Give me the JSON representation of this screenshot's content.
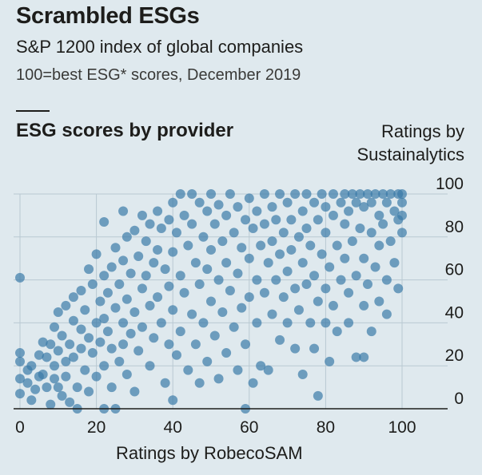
{
  "header": {
    "title": "Scrambled ESGs",
    "subtitle": "S&P 1200 index of global companies",
    "note": "100=best ESG* scores, December 2019"
  },
  "chart_data": {
    "type": "scatter",
    "title": "ESG scores by provider",
    "xlabel": "Ratings by RobecoSAM",
    "ylabel_line1": "Ratings by",
    "ylabel_line2": "Sustainalytics",
    "xlim": [
      0,
      100
    ],
    "ylim": [
      0,
      100
    ],
    "xticks": [
      "0",
      "20",
      "40",
      "60",
      "80",
      "100"
    ],
    "yticks": [
      "0",
      "20",
      "40",
      "60",
      "80",
      "100"
    ],
    "grid": true,
    "point_color": "#3a7aa8",
    "points": [
      [
        0,
        61
      ],
      [
        0,
        26
      ],
      [
        0,
        22
      ],
      [
        0,
        14
      ],
      [
        0,
        7
      ],
      [
        2,
        18
      ],
      [
        2,
        12
      ],
      [
        3,
        4
      ],
      [
        3,
        20
      ],
      [
        4,
        9
      ],
      [
        5,
        25
      ],
      [
        5,
        15
      ],
      [
        6,
        31
      ],
      [
        6,
        16
      ],
      [
        7,
        10
      ],
      [
        7,
        24
      ],
      [
        8,
        30
      ],
      [
        8,
        2
      ],
      [
        9,
        20
      ],
      [
        9,
        38
      ],
      [
        9,
        14
      ],
      [
        10,
        45
      ],
      [
        10,
        27
      ],
      [
        10,
        10
      ],
      [
        11,
        6
      ],
      [
        11,
        34
      ],
      [
        12,
        48
      ],
      [
        12,
        22
      ],
      [
        12,
        15
      ],
      [
        13,
        30
      ],
      [
        13,
        3
      ],
      [
        14,
        41
      ],
      [
        14,
        24
      ],
      [
        14,
        52
      ],
      [
        15,
        0
      ],
      [
        15,
        10
      ],
      [
        16,
        37
      ],
      [
        16,
        55
      ],
      [
        16,
        28
      ],
      [
        17,
        18
      ],
      [
        17,
        46
      ],
      [
        18,
        65
      ],
      [
        18,
        33
      ],
      [
        18,
        8
      ],
      [
        19,
        26
      ],
      [
        19,
        58
      ],
      [
        20,
        72
      ],
      [
        20,
        40
      ],
      [
        20,
        15
      ],
      [
        21,
        50
      ],
      [
        21,
        31
      ],
      [
        22,
        87
      ],
      [
        22,
        62
      ],
      [
        22,
        42
      ],
      [
        22,
        20
      ],
      [
        22,
        0
      ],
      [
        23,
        54
      ],
      [
        23,
        36
      ],
      [
        24,
        66
      ],
      [
        24,
        28
      ],
      [
        24,
        10
      ],
      [
        25,
        75
      ],
      [
        25,
        47
      ],
      [
        25,
        0
      ],
      [
        26,
        58
      ],
      [
        26,
        22
      ],
      [
        27,
        92
      ],
      [
        27,
        69
      ],
      [
        27,
        40
      ],
      [
        27,
        30
      ],
      [
        28,
        80
      ],
      [
        28,
        51
      ],
      [
        28,
        16
      ],
      [
        29,
        63
      ],
      [
        29,
        35
      ],
      [
        30,
        83
      ],
      [
        30,
        45
      ],
      [
        30,
        8
      ],
      [
        31,
        71
      ],
      [
        31,
        27
      ],
      [
        32,
        90
      ],
      [
        32,
        56
      ],
      [
        32,
        38
      ],
      [
        33,
        78
      ],
      [
        33,
        62
      ],
      [
        34,
        86
      ],
      [
        34,
        48
      ],
      [
        34,
        20
      ],
      [
        35,
        68
      ],
      [
        35,
        33
      ],
      [
        36,
        92
      ],
      [
        36,
        74
      ],
      [
        36,
        52
      ],
      [
        37,
        84
      ],
      [
        37,
        40
      ],
      [
        38,
        65
      ],
      [
        38,
        12
      ],
      [
        39,
        88
      ],
      [
        39,
        57
      ],
      [
        39,
        30
      ],
      [
        40,
        96
      ],
      [
        40,
        73
      ],
      [
        40,
        46
      ],
      [
        40,
        4
      ],
      [
        41,
        82
      ],
      [
        41,
        25
      ],
      [
        42,
        100
      ],
      [
        42,
        62
      ],
      [
        42,
        36
      ],
      [
        43,
        90
      ],
      [
        43,
        54
      ],
      [
        44,
        76
      ],
      [
        44,
        18
      ],
      [
        45,
        100
      ],
      [
        45,
        86
      ],
      [
        45,
        44
      ],
      [
        46,
        68
      ],
      [
        46,
        30
      ],
      [
        47,
        96
      ],
      [
        47,
        58
      ],
      [
        47,
        12
      ],
      [
        48,
        80
      ],
      [
        48,
        40
      ],
      [
        49,
        92
      ],
      [
        49,
        65
      ],
      [
        49,
        22
      ],
      [
        50,
        100
      ],
      [
        50,
        74
      ],
      [
        50,
        50
      ],
      [
        51,
        86
      ],
      [
        51,
        34
      ],
      [
        52,
        95
      ],
      [
        52,
        60
      ],
      [
        52,
        14
      ],
      [
        53,
        78
      ],
      [
        53,
        45
      ],
      [
        54,
        90
      ],
      [
        54,
        68
      ],
      [
        54,
        26
      ],
      [
        55,
        100
      ],
      [
        55,
        55
      ],
      [
        56,
        82
      ],
      [
        56,
        38
      ],
      [
        57,
        94
      ],
      [
        57,
        63
      ],
      [
        57,
        18
      ],
      [
        58,
        75
      ],
      [
        58,
        47
      ],
      [
        59,
        88
      ],
      [
        59,
        30
      ],
      [
        59,
        0
      ],
      [
        60,
        98
      ],
      [
        60,
        70
      ],
      [
        60,
        52
      ],
      [
        61,
        84
      ],
      [
        61,
        12
      ],
      [
        62,
        92
      ],
      [
        62,
        60
      ],
      [
        62,
        40
      ],
      [
        63,
        76
      ],
      [
        63,
        20
      ],
      [
        64,
        100
      ],
      [
        64,
        86
      ],
      [
        64,
        54
      ],
      [
        65,
        68
      ],
      [
        65,
        18
      ],
      [
        66,
        94
      ],
      [
        66,
        78
      ],
      [
        66,
        44
      ],
      [
        67,
        88
      ],
      [
        67,
        60
      ],
      [
        68,
        100
      ],
      [
        68,
        72
      ],
      [
        68,
        32
      ],
      [
        69,
        82
      ],
      [
        69,
        52
      ],
      [
        70,
        96
      ],
      [
        70,
        64
      ],
      [
        70,
        40
      ],
      [
        71,
        88
      ],
      [
        71,
        74
      ],
      [
        72,
        100
      ],
      [
        72,
        56
      ],
      [
        72,
        28
      ],
      [
        73,
        80
      ],
      [
        73,
        46
      ],
      [
        74,
        92
      ],
      [
        74,
        68
      ],
      [
        74,
        16
      ],
      [
        75,
        100
      ],
      [
        75,
        84
      ],
      [
        75,
        58
      ],
      [
        76,
        76
      ],
      [
        76,
        40
      ],
      [
        77,
        96
      ],
      [
        77,
        62
      ],
      [
        77,
        28
      ],
      [
        78,
        88
      ],
      [
        78,
        50
      ],
      [
        78,
        6
      ],
      [
        79,
        100
      ],
      [
        79,
        72
      ],
      [
        80,
        94
      ],
      [
        80,
        82
      ],
      [
        80,
        56
      ],
      [
        80,
        40
      ],
      [
        81,
        66
      ],
      [
        81,
        22
      ],
      [
        82,
        100
      ],
      [
        82,
        90
      ],
      [
        82,
        48
      ],
      [
        83,
        76
      ],
      [
        83,
        36
      ],
      [
        84,
        96
      ],
      [
        84,
        60
      ],
      [
        85,
        100
      ],
      [
        85,
        86
      ],
      [
        85,
        70
      ],
      [
        86,
        92
      ],
      [
        86,
        54
      ],
      [
        86,
        40
      ],
      [
        87,
        100
      ],
      [
        87,
        78
      ],
      [
        88,
        96
      ],
      [
        88,
        62
      ],
      [
        88,
        24
      ],
      [
        89,
        100
      ],
      [
        89,
        84
      ],
      [
        90,
        94
      ],
      [
        90,
        70
      ],
      [
        90,
        48
      ],
      [
        90,
        24
      ],
      [
        91,
        100
      ],
      [
        91,
        58
      ],
      [
        92,
        96
      ],
      [
        92,
        82
      ],
      [
        92,
        36
      ],
      [
        93,
        100
      ],
      [
        93,
        66
      ],
      [
        94,
        90
      ],
      [
        94,
        76
      ],
      [
        94,
        50
      ],
      [
        95,
        100
      ],
      [
        95,
        86
      ],
      [
        96,
        96
      ],
      [
        96,
        60
      ],
      [
        96,
        44
      ],
      [
        97,
        100
      ],
      [
        97,
        78
      ],
      [
        98,
        92
      ],
      [
        98,
        68
      ],
      [
        99,
        100
      ],
      [
        99,
        88
      ],
      [
        99,
        56
      ],
      [
        100,
        100
      ],
      [
        100,
        96
      ],
      [
        100,
        90
      ],
      [
        100,
        82
      ]
    ]
  }
}
